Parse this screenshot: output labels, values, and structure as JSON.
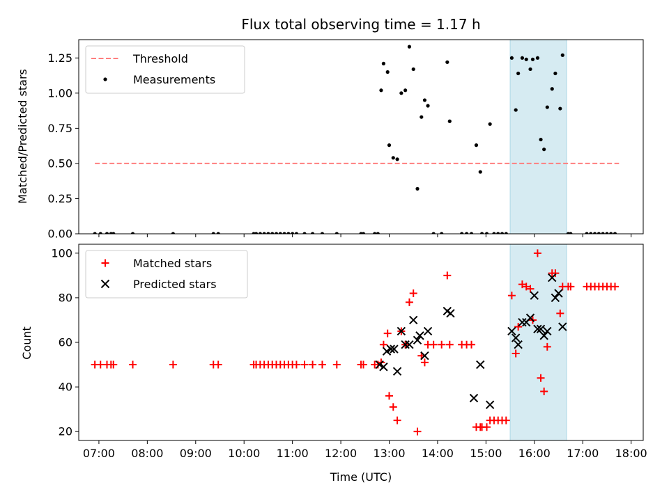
{
  "chart_data": [
    {
      "type": "scatter",
      "title": "Flux total observing time = 1.17 h",
      "xlabel": "",
      "ylabel": "Matched/Predicted stars",
      "xlim": [
        "06:35",
        "18:15"
      ],
      "ylim": [
        0,
        1.38
      ],
      "yticks": [
        0,
        0.25,
        0.5,
        0.75,
        1.0,
        1.25
      ],
      "ytick_labels": [
        "0.00",
        "0.25",
        "0.50",
        "0.75",
        "1.00",
        "1.25"
      ],
      "highlight_span": {
        "from": "15:30",
        "to": "16:40",
        "color": "#add8e6"
      },
      "legend": {
        "position": "top-left",
        "items": [
          {
            "label": "Threshold",
            "style": "dashed-line",
            "color": "#ff7f7f"
          },
          {
            "label": "Measurements",
            "style": "dot",
            "color": "#000000"
          }
        ]
      },
      "threshold": {
        "value": 0.5,
        "from": "06:55",
        "to": "17:45",
        "color": "#ff7f7f"
      },
      "series": [
        {
          "name": "Measurements",
          "color": "#000000",
          "marker": "dot",
          "points": [
            [
              "06:55",
              0
            ],
            [
              "07:02",
              0
            ],
            [
              "07:10",
              0
            ],
            [
              "07:15",
              0
            ],
            [
              "07:18",
              0
            ],
            [
              "07:42",
              0
            ],
            [
              "08:32",
              0
            ],
            [
              "09:22",
              0
            ],
            [
              "09:28",
              0
            ],
            [
              "10:12",
              0
            ],
            [
              "10:15",
              0
            ],
            [
              "10:20",
              0
            ],
            [
              "10:25",
              0
            ],
            [
              "10:30",
              0
            ],
            [
              "10:35",
              0
            ],
            [
              "10:40",
              0
            ],
            [
              "10:45",
              0
            ],
            [
              "10:50",
              0
            ],
            [
              "10:55",
              0
            ],
            [
              "11:00",
              0
            ],
            [
              "11:05",
              0
            ],
            [
              "11:15",
              0
            ],
            [
              "11:25",
              0
            ],
            [
              "11:37",
              0
            ],
            [
              "11:55",
              0
            ],
            [
              "12:25",
              0
            ],
            [
              "12:28",
              0
            ],
            [
              "12:42",
              0
            ],
            [
              "12:46",
              0
            ],
            [
              "12:50",
              1.02
            ],
            [
              "12:53",
              1.21
            ],
            [
              "12:58",
              1.15
            ],
            [
              "13:00",
              0.63
            ],
            [
              "13:05",
              0.54
            ],
            [
              "13:10",
              0.53
            ],
            [
              "13:15",
              1.0
            ],
            [
              "13:20",
              1.02
            ],
            [
              "13:25",
              1.33
            ],
            [
              "13:30",
              1.17
            ],
            [
              "13:35",
              0.32
            ],
            [
              "13:40",
              0.83
            ],
            [
              "13:44",
              0.95
            ],
            [
              "13:48",
              0.91
            ],
            [
              "13:55",
              0
            ],
            [
              "14:05",
              0
            ],
            [
              "14:12",
              1.22
            ],
            [
              "14:15",
              0.8
            ],
            [
              "14:30",
              0
            ],
            [
              "14:36",
              0
            ],
            [
              "14:42",
              0
            ],
            [
              "14:48",
              0.63
            ],
            [
              "14:53",
              0.44
            ],
            [
              "14:55",
              0
            ],
            [
              "15:01",
              0
            ],
            [
              "15:05",
              0.78
            ],
            [
              "15:10",
              0
            ],
            [
              "15:15",
              0
            ],
            [
              "15:20",
              0
            ],
            [
              "15:25",
              0
            ],
            [
              "15:32",
              1.25
            ],
            [
              "15:37",
              0.88
            ],
            [
              "15:40",
              1.14
            ],
            [
              "15:45",
              1.25
            ],
            [
              "15:50",
              1.24
            ],
            [
              "15:55",
              1.17
            ],
            [
              "15:58",
              1.24
            ],
            [
              "16:04",
              1.25
            ],
            [
              "16:08",
              0.67
            ],
            [
              "16:12",
              0.6
            ],
            [
              "16:16",
              0.9
            ],
            [
              "16:22",
              1.03
            ],
            [
              "16:26",
              1.14
            ],
            [
              "16:32",
              0.89
            ],
            [
              "16:35",
              1.27
            ],
            [
              "16:42",
              0
            ],
            [
              "16:45",
              0
            ],
            [
              "17:05",
              0
            ],
            [
              "17:10",
              0
            ],
            [
              "17:15",
              0
            ],
            [
              "17:20",
              0
            ],
            [
              "17:25",
              0
            ],
            [
              "17:30",
              0
            ],
            [
              "17:35",
              0
            ],
            [
              "17:40",
              0
            ]
          ]
        }
      ]
    },
    {
      "type": "scatter",
      "title": "",
      "xlabel": "Time (UTC)",
      "ylabel": "Count",
      "xlim": [
        "06:35",
        "18:15"
      ],
      "ylim": [
        16,
        104
      ],
      "yticks": [
        20,
        40,
        60,
        80,
        100
      ],
      "xticks": [
        "07:00",
        "08:00",
        "09:00",
        "10:00",
        "11:00",
        "12:00",
        "13:00",
        "14:00",
        "15:00",
        "16:00",
        "17:00",
        "18:00"
      ],
      "highlight_span": {
        "from": "15:30",
        "to": "16:40",
        "color": "#add8e6"
      },
      "legend": {
        "position": "top-left",
        "items": [
          {
            "label": "Matched stars",
            "style": "plus",
            "color": "#ff0000"
          },
          {
            "label": "Predicted stars",
            "style": "x",
            "color": "#000000"
          }
        ]
      },
      "series": [
        {
          "name": "Matched stars",
          "color": "#ff0000",
          "marker": "plus",
          "points": [
            [
              "06:55",
              50
            ],
            [
              "07:02",
              50
            ],
            [
              "07:10",
              50
            ],
            [
              "07:15",
              50
            ],
            [
              "07:18",
              50
            ],
            [
              "07:42",
              50
            ],
            [
              "08:32",
              50
            ],
            [
              "09:22",
              50
            ],
            [
              "09:28",
              50
            ],
            [
              "10:12",
              50
            ],
            [
              "10:15",
              50
            ],
            [
              "10:20",
              50
            ],
            [
              "10:25",
              50
            ],
            [
              "10:30",
              50
            ],
            [
              "10:35",
              50
            ],
            [
              "10:40",
              50
            ],
            [
              "10:45",
              50
            ],
            [
              "10:50",
              50
            ],
            [
              "10:55",
              50
            ],
            [
              "11:00",
              50
            ],
            [
              "11:05",
              50
            ],
            [
              "11:15",
              50
            ],
            [
              "11:25",
              50
            ],
            [
              "11:37",
              50
            ],
            [
              "11:55",
              50
            ],
            [
              "12:25",
              50
            ],
            [
              "12:28",
              50
            ],
            [
              "12:42",
              50
            ],
            [
              "12:46",
              50
            ],
            [
              "12:50",
              51
            ],
            [
              "12:53",
              59
            ],
            [
              "12:58",
              64
            ],
            [
              "13:00",
              36
            ],
            [
              "13:05",
              31
            ],
            [
              "13:10",
              25
            ],
            [
              "13:15",
              65
            ],
            [
              "13:20",
              59
            ],
            [
              "13:25",
              78
            ],
            [
              "13:30",
              82
            ],
            [
              "13:35",
              20
            ],
            [
              "13:40",
              54
            ],
            [
              "13:44",
              51
            ],
            [
              "13:48",
              59
            ],
            [
              "13:55",
              59
            ],
            [
              "14:05",
              59
            ],
            [
              "14:12",
              90
            ],
            [
              "14:15",
              59
            ],
            [
              "14:30",
              59
            ],
            [
              "14:36",
              59
            ],
            [
              "14:42",
              59
            ],
            [
              "14:48",
              22
            ],
            [
              "14:53",
              22
            ],
            [
              "14:55",
              22
            ],
            [
              "15:01",
              22
            ],
            [
              "15:05",
              25
            ],
            [
              "15:10",
              25
            ],
            [
              "15:15",
              25
            ],
            [
              "15:20",
              25
            ],
            [
              "15:25",
              25
            ],
            [
              "15:32",
              81
            ],
            [
              "15:37",
              55
            ],
            [
              "15:40",
              67
            ],
            [
              "15:45",
              86
            ],
            [
              "15:50",
              85
            ],
            [
              "15:55",
              84
            ],
            [
              "15:58",
              70
            ],
            [
              "16:04",
              100
            ],
            [
              "16:08",
              44
            ],
            [
              "16:12",
              38
            ],
            [
              "16:16",
              58
            ],
            [
              "16:22",
              91
            ],
            [
              "16:26",
              91
            ],
            [
              "16:32",
              73
            ],
            [
              "16:35",
              85
            ],
            [
              "16:42",
              85
            ],
            [
              "16:45",
              85
            ],
            [
              "17:05",
              85
            ],
            [
              "17:10",
              85
            ],
            [
              "17:15",
              85
            ],
            [
              "17:20",
              85
            ],
            [
              "17:25",
              85
            ],
            [
              "17:30",
              85
            ],
            [
              "17:35",
              85
            ],
            [
              "17:40",
              85
            ]
          ]
        },
        {
          "name": "Predicted stars",
          "color": "#000000",
          "marker": "x",
          "points": [
            [
              "12:48",
              50
            ],
            [
              "12:53",
              49
            ],
            [
              "12:57",
              56
            ],
            [
              "13:02",
              57
            ],
            [
              "13:06",
              57
            ],
            [
              "13:10",
              47
            ],
            [
              "13:15",
              65
            ],
            [
              "13:20",
              59
            ],
            [
              "13:25",
              59
            ],
            [
              "13:30",
              70
            ],
            [
              "13:35",
              61
            ],
            [
              "13:38",
              63
            ],
            [
              "13:44",
              54
            ],
            [
              "13:48",
              65
            ],
            [
              "14:12",
              74
            ],
            [
              "14:16",
              73
            ],
            [
              "14:45",
              35
            ],
            [
              "14:53",
              50
            ],
            [
              "15:05",
              32
            ],
            [
              "15:32",
              65
            ],
            [
              "15:37",
              62
            ],
            [
              "15:40",
              59
            ],
            [
              "15:45",
              69
            ],
            [
              "15:50",
              69
            ],
            [
              "15:55",
              71
            ],
            [
              "16:00",
              81
            ],
            [
              "16:04",
              66
            ],
            [
              "16:08",
              66
            ],
            [
              "16:12",
              63
            ],
            [
              "16:16",
              65
            ],
            [
              "16:22",
              89
            ],
            [
              "16:26",
              80
            ],
            [
              "16:30",
              82
            ],
            [
              "16:35",
              67
            ]
          ]
        }
      ]
    }
  ]
}
